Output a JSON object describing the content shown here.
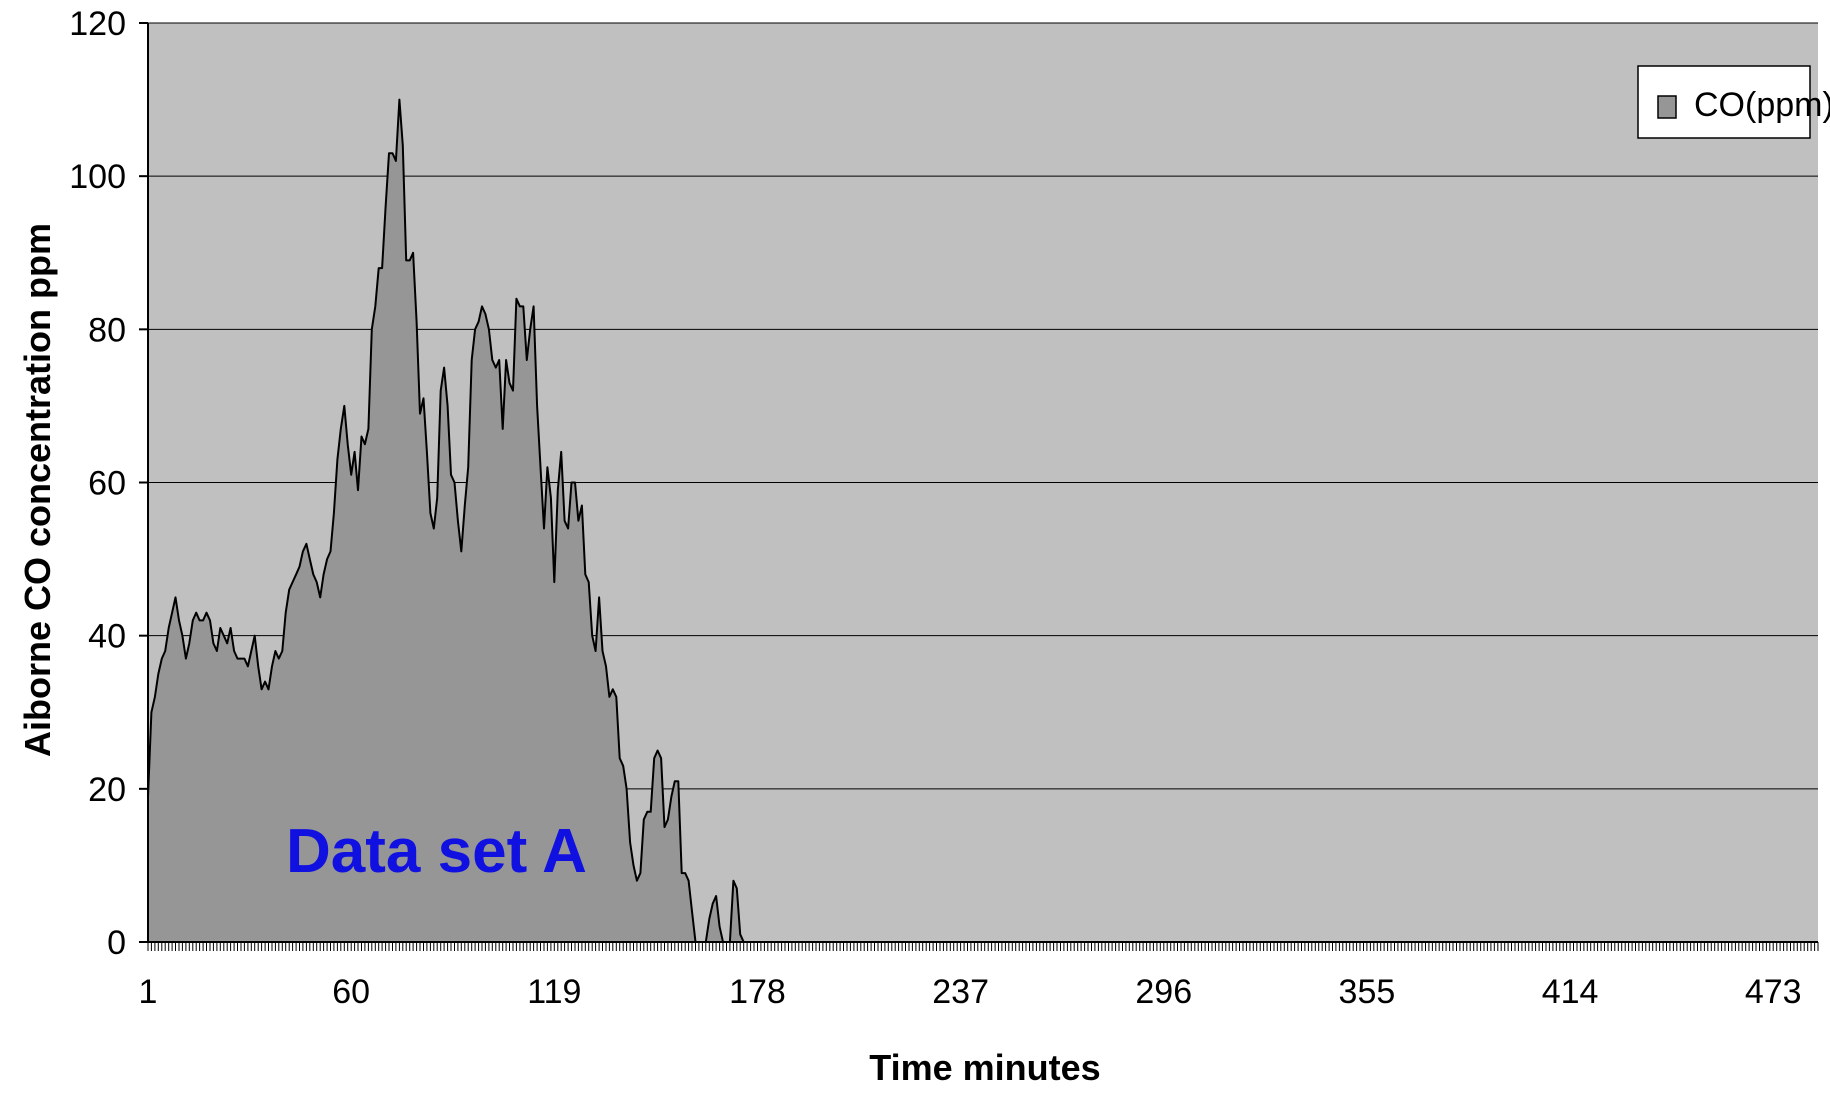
{
  "chart_data": {
    "type": "area",
    "title": "",
    "xlabel": "Time minutes",
    "ylabel": "Aiborne CO concentration ppm",
    "xlim": [
      1,
      486
    ],
    "ylim": [
      0,
      120
    ],
    "x_tick_labels": [
      "1",
      "60",
      "119",
      "178",
      "237",
      "296",
      "355",
      "414",
      "473"
    ],
    "y_tick_labels": [
      "0",
      "20",
      "40",
      "60",
      "80",
      "100",
      "120"
    ],
    "grid": "horizontal",
    "legend": {
      "position": "top-right",
      "entries": [
        "CO(ppm)"
      ]
    },
    "annotation": {
      "text": "Data set A",
      "color": "#1010e0"
    },
    "colors": {
      "plot_background": "#c0c0c0",
      "area_fill": "#969696",
      "area_line": "#000000",
      "gridline": "#000000"
    },
    "series": [
      {
        "name": "CO(ppm)",
        "x": [
          1,
          2,
          3,
          4,
          5,
          6,
          7,
          8,
          9,
          10,
          11,
          12,
          13,
          14,
          15,
          16,
          17,
          18,
          19,
          20,
          21,
          22,
          23,
          24,
          25,
          26,
          27,
          28,
          29,
          30,
          31,
          32,
          33,
          34,
          35,
          36,
          37,
          38,
          39,
          40,
          41,
          42,
          43,
          44,
          45,
          46,
          47,
          48,
          49,
          50,
          51,
          52,
          53,
          54,
          55,
          56,
          57,
          58,
          59,
          60,
          61,
          62,
          63,
          64,
          65,
          66,
          67,
          68,
          69,
          70,
          71,
          72,
          73,
          74,
          75,
          76,
          77,
          78,
          79,
          80,
          81,
          82,
          83,
          84,
          85,
          86,
          87,
          88,
          89,
          90,
          91,
          92,
          93,
          94,
          95,
          96,
          97,
          98,
          99,
          100,
          101,
          102,
          103,
          104,
          105,
          106,
          107,
          108,
          109,
          110,
          111,
          112,
          113,
          114,
          115,
          116,
          117,
          118,
          119,
          120,
          121,
          122,
          123,
          124,
          125,
          126,
          127,
          128,
          129,
          130,
          131,
          132,
          133,
          134,
          135,
          136,
          137,
          138,
          139,
          140,
          141,
          142,
          143,
          144,
          145,
          146,
          147,
          148,
          149,
          150,
          151,
          152,
          153,
          154,
          155,
          156,
          157,
          158,
          159,
          160,
          161,
          162,
          163,
          164,
          165,
          166,
          167,
          168,
          169,
          170,
          171,
          172,
          173,
          174,
          175,
          176,
          177,
          178,
          179,
          180,
          181,
          182,
          183,
          184,
          185,
          186,
          187,
          188,
          189,
          190,
          191,
          192,
          193,
          194,
          195,
          196,
          197
        ],
        "values": [
          19,
          30,
          32,
          35,
          37,
          38,
          41,
          43,
          45,
          42,
          40,
          37,
          39,
          42,
          43,
          42,
          42,
          43,
          42,
          39,
          38,
          41,
          40,
          39,
          41,
          38,
          37,
          37,
          37,
          36,
          38,
          40,
          36,
          33,
          34,
          33,
          36,
          38,
          37,
          38,
          43,
          46,
          47,
          48,
          49,
          51,
          52,
          50,
          48,
          47,
          45,
          48,
          50,
          51,
          56,
          63,
          67,
          70,
          65,
          61,
          64,
          59,
          66,
          65,
          67,
          80,
          83,
          88,
          88,
          96,
          103,
          103,
          102,
          110,
          104,
          89,
          89,
          90,
          81,
          69,
          71,
          64,
          56,
          54,
          58,
          72,
          75,
          70,
          61,
          60,
          55,
          51,
          57,
          62,
          76,
          80,
          81,
          83,
          82,
          80,
          76,
          75,
          76,
          67,
          76,
          73,
          72,
          84,
          83,
          83,
          76,
          80,
          83,
          70,
          62,
          54,
          62,
          58,
          47,
          59,
          64,
          55,
          54,
          60,
          60,
          55,
          57,
          48,
          47,
          40,
          38,
          45,
          38,
          36,
          32,
          33,
          32,
          24,
          23,
          20,
          13,
          10,
          8,
          9,
          16,
          17,
          17,
          24,
          25,
          24,
          15,
          16,
          19,
          21,
          21,
          9,
          9,
          8,
          4,
          0,
          0,
          0,
          0,
          3,
          5,
          6,
          2,
          0,
          0,
          0,
          8,
          7,
          1,
          0,
          0,
          0,
          0,
          0,
          0,
          0,
          0,
          0,
          0,
          0,
          0,
          0,
          0,
          0,
          0,
          0,
          0,
          0,
          0,
          0,
          0,
          0,
          0
        ]
      }
    ]
  }
}
